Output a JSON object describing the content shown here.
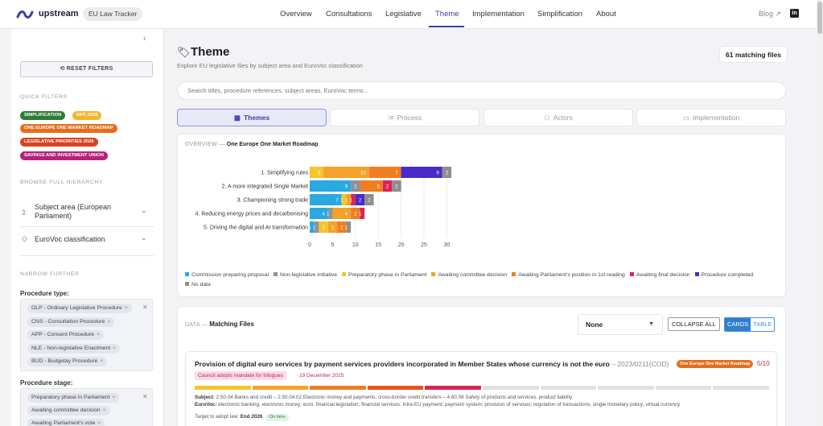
{
  "nav": {
    "brand": "upstream",
    "app_badge": "EU Law Tracker",
    "links": [
      "Overview",
      "Consultations",
      "Legislative",
      "Theme",
      "Implementation",
      "Simplification",
      "About"
    ],
    "active": "Theme",
    "blog": "Blog ↗",
    "linkedin": "in"
  },
  "sidebar": {
    "reset_label": "⟲ RESET FILTERS",
    "quick_filters_heading": "QUICK FILTERS",
    "quick_filters": [
      {
        "label": "SIMPLIFICATION",
        "color": "#2e7d32"
      },
      {
        "label": "MFF 2028",
        "color": "#f5b52a"
      },
      {
        "label": "ONE EUROPE ONE MARKET ROADMAP",
        "color": "#e36e1e"
      },
      {
        "label": "LEGISLATIVE PRIORITIES 2026",
        "color": "#d9431e"
      },
      {
        "label": "SAVINGS AND INVESTMENT UNION",
        "color": "#b8217a"
      }
    ],
    "browse_heading": "BROWSE FULL HIERARCHY",
    "subject_area_label": "Subject area (European Parliament)",
    "eurovoc_label": "EuroVoc classification",
    "narrow_heading": "NARROW FURTHER",
    "procedure_type_label": "Procedure type:",
    "procedure_types": [
      "OLP - Ordinary Legislative Procedure",
      "CNS - Consultation Procedure",
      "APP - Consent Procedure",
      "NLE - Non-legislative Enactment",
      "BUD - Budgetay Procedure"
    ],
    "procedure_stage_label": "Procedure stage:",
    "procedure_stages": [
      "Preparatory phase in Parliament",
      "Awaiting committee decision",
      "Awaiting Parliament's vote"
    ]
  },
  "main": {
    "title": "Theme",
    "subtitle": "Explore EU legislative files by subject area and EuroVoc classification",
    "match_count": "61 matching files",
    "search_placeholder": "Search titles, procedure references, subject areas, EuroVoc terms...",
    "tabs": [
      {
        "label": "Themes",
        "icon": "▦"
      },
      {
        "label": "Process",
        "icon": "⁝≡"
      },
      {
        "label": "Actors",
        "icon": "⚇"
      },
      {
        "label": "Implementation",
        "icon": "▭"
      }
    ],
    "overview_prefix": "OVERVIEW — ",
    "overview_title": "One Europe One Market Roadmap"
  },
  "chart_data": {
    "type": "bar",
    "orientation": "horizontal-stacked",
    "categories": [
      "1. Simplifying rules",
      "2. A more integrated Single Market",
      "3. Championing strong trade",
      "4. Reducing energy prices and decarbonising",
      "5. Driving the digital and AI transformation"
    ],
    "xlim": [
      0,
      30
    ],
    "xticks": [
      0,
      5,
      10,
      15,
      20,
      25,
      30
    ],
    "grid": true,
    "legend_position": "bottom",
    "series": [
      {
        "name": "Commission preparing proposal",
        "color": "#29a9e0",
        "values": [
          0,
          9,
          7,
          4,
          1
        ]
      },
      {
        "name": "Non-legislative initiative",
        "color": "#8c939e",
        "values": [
          0,
          2,
          0,
          1,
          1
        ]
      },
      {
        "name": "Preparatory phase in Parliament",
        "color": "#f5c62a",
        "values": [
          3,
          0,
          1,
          0,
          2
        ]
      },
      {
        "name": "Awaiting committee decision",
        "color": "#f4a22a",
        "values": [
          10,
          0,
          1,
          4,
          2
        ]
      },
      {
        "name": "Awaiting Parliament's position in 1st reading",
        "color": "#ef7e22",
        "values": [
          7,
          5,
          0,
          2,
          2
        ]
      },
      {
        "name": "Awaiting final decision",
        "color": "#dc2456",
        "values": [
          0,
          2,
          1,
          1,
          0
        ]
      },
      {
        "name": "Procedure completed",
        "color": "#4a2bc8",
        "values": [
          9,
          0,
          2,
          0,
          0
        ]
      },
      {
        "name": "No data",
        "color": "#8e8e8e",
        "values": [
          2,
          2,
          2,
          0,
          1
        ]
      }
    ]
  },
  "data_section": {
    "prefix": "DATA — ",
    "title": "Matching Files",
    "sort_value": "None",
    "collapse_all": "COLLAPSE ALL",
    "view_cards": "CARDS",
    "view_table": "TABLE"
  },
  "file": {
    "title": "Provision of digital euro services by payment services providers incorporated in Member States whose currency is not the euro",
    "ref": " – 2023/0211(COD)",
    "roadmap_pill": "One Europe One Market Roadmap",
    "score": "5/10",
    "status": "Council adopts mandate for trilogues",
    "status_date": "· 19 December 2025",
    "progress_colors": [
      "#f5c62a",
      "#f4a22a",
      "#ef7e22",
      "#e8541e",
      "#dc2456",
      "#e0e0e0",
      "#e0e0e0",
      "#e0e0e0",
      "#e0e0e0",
      "#e0e0e0"
    ],
    "subject_label": "Subject:",
    "subject": "2.50.04 Banks and credit – 2.50.04.02 Electronic money and payments, cross-border credit transfers – 4.60.08 Safety of products and services, product liability",
    "eurovoc_label": "EuroVoc:",
    "eurovoc": "electronic banking; electronic money; euro; financial legislation; financial services; intra-EU payment; payment system; provision of services; regulation of transactions; single monetary policy; virtual currency",
    "target_label": "Target to adopt law:",
    "target": "End 2026",
    "ontime": "On time"
  }
}
